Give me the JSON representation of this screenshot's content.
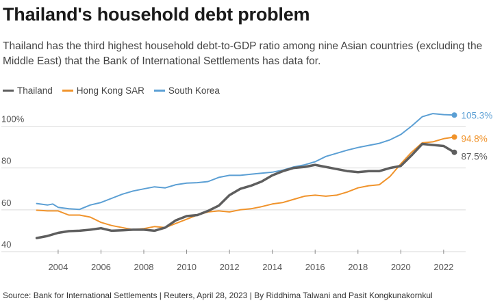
{
  "title": "Thailand's household debt problem",
  "subtitle": "Thailand has the third highest household debt-to-GDP ratio among nine Asian countries (excluding the Middle East) that the Bank of International Settlements has data for.",
  "source": "Source: Bank for International Settlements | Reuters, April 28, 2023 | By Riddhima Talwani and Pasit Kongkunakornkul",
  "legend": [
    {
      "label": "Thailand",
      "color": "#5e5e5e"
    },
    {
      "label": "Hong Kong SAR",
      "color": "#f0932b"
    },
    {
      "label": "South Korea",
      "color": "#5b9fd4"
    }
  ],
  "chart_data": {
    "type": "line",
    "xlim": [
      2002.5,
      2022.9
    ],
    "ylim": [
      40,
      108
    ],
    "y_ticks": [
      40,
      60,
      80,
      100
    ],
    "y_tick_labels": [
      "40",
      "60",
      "80",
      "100%"
    ],
    "x_ticks": [
      2004,
      2006,
      2008,
      2010,
      2012,
      2014,
      2016,
      2018,
      2020,
      2022
    ],
    "x_tick_labels": [
      "2004",
      "2006",
      "2008",
      "2010",
      "2012",
      "2014",
      "2016",
      "2018",
      "2020",
      "2022"
    ],
    "grid": "horizontal",
    "legend_position": "top-left",
    "series": [
      {
        "name": "South Korea",
        "color": "#5b9fd4",
        "end_label": "105.3%",
        "x": [
          2003.0,
          2003.5,
          2003.75,
          2004.0,
          2004.5,
          2005.0,
          2005.5,
          2006.0,
          2006.5,
          2007.0,
          2007.5,
          2008.0,
          2008.5,
          2009.0,
          2009.5,
          2010.0,
          2010.5,
          2011.0,
          2011.5,
          2012.0,
          2012.5,
          2013.0,
          2013.5,
          2014.0,
          2014.5,
          2015.0,
          2015.5,
          2016.0,
          2016.5,
          2017.0,
          2017.5,
          2018.0,
          2018.5,
          2019.0,
          2019.5,
          2020.0,
          2020.5,
          2021.0,
          2021.5,
          2022.0,
          2022.5
        ],
        "values": [
          63,
          62.3,
          62.8,
          61.2,
          60.5,
          60.2,
          62.3,
          63.5,
          65.5,
          67.5,
          69,
          70,
          71,
          70.5,
          72,
          72.8,
          73,
          73.5,
          75.5,
          76.5,
          76.5,
          77,
          77.5,
          78,
          79,
          80.5,
          81.5,
          83,
          85.5,
          87,
          88.5,
          89.8,
          90.8,
          91.8,
          93.5,
          96,
          100,
          104.5,
          106,
          105.5,
          105.3
        ]
      },
      {
        "name": "Hong Kong SAR",
        "color": "#f0932b",
        "end_label": "94.8%",
        "x": [
          2003.0,
          2003.5,
          2004.0,
          2004.5,
          2005.0,
          2005.5,
          2006.0,
          2006.5,
          2007.0,
          2007.5,
          2008.0,
          2008.5,
          2009.0,
          2009.5,
          2010.0,
          2010.5,
          2011.0,
          2011.5,
          2012.0,
          2012.5,
          2013.0,
          2013.5,
          2014.0,
          2014.5,
          2015.0,
          2015.5,
          2016.0,
          2016.5,
          2017.0,
          2017.5,
          2018.0,
          2018.5,
          2019.0,
          2019.5,
          2020.0,
          2020.5,
          2021.0,
          2021.5,
          2022.0,
          2022.5
        ],
        "values": [
          59.8,
          59.5,
          59.5,
          57.5,
          57.5,
          56.5,
          54,
          52.5,
          51.5,
          50.5,
          51,
          52,
          51.5,
          53.5,
          55.5,
          57.5,
          59,
          59.5,
          59,
          60,
          60.5,
          61.5,
          62.8,
          63.5,
          65,
          66.5,
          67,
          66.5,
          67,
          68.5,
          70.5,
          71.5,
          72,
          76,
          82,
          87.5,
          92,
          92.5,
          94,
          94.8
        ]
      },
      {
        "name": "Thailand",
        "color": "#5e5e5e",
        "end_label": "87.5%",
        "x": [
          2003.0,
          2003.5,
          2004.0,
          2004.5,
          2005.0,
          2005.5,
          2006.0,
          2006.5,
          2007.0,
          2007.5,
          2008.0,
          2008.5,
          2009.0,
          2009.5,
          2010.0,
          2010.5,
          2011.0,
          2011.5,
          2012.0,
          2012.5,
          2013.0,
          2013.5,
          2014.0,
          2014.5,
          2015.0,
          2015.5,
          2016.0,
          2016.5,
          2017.0,
          2017.5,
          2018.0,
          2018.5,
          2019.0,
          2019.5,
          2020.0,
          2020.5,
          2021.0,
          2021.5,
          2022.0,
          2022.5
        ],
        "values": [
          46.5,
          47.5,
          49,
          49.8,
          50,
          50.5,
          51.2,
          50,
          50.2,
          50.5,
          50.5,
          50,
          51.5,
          55,
          57,
          57.5,
          59.5,
          62,
          67,
          70,
          71.5,
          73.5,
          76.5,
          78.5,
          80,
          80.5,
          81.5,
          80.5,
          79.5,
          78.5,
          78,
          78.5,
          78.5,
          80,
          81,
          86,
          91.5,
          91,
          90.5,
          87.5
        ]
      }
    ]
  }
}
